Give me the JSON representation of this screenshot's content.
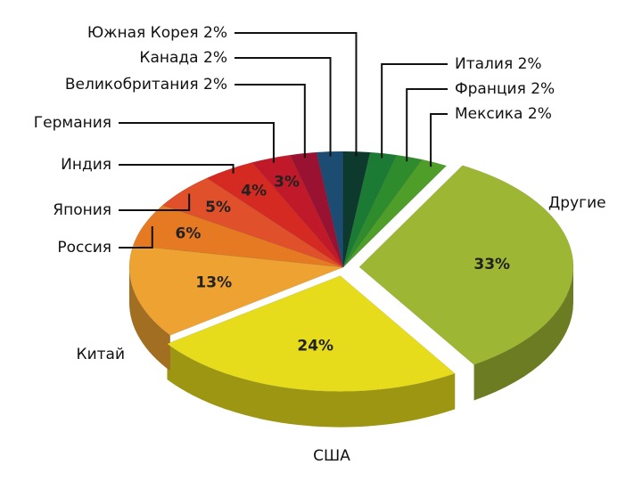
{
  "chart_data": {
    "type": "pie",
    "categories": [
      "Другие",
      "США",
      "Китай",
      "Россия",
      "Япония",
      "Индия",
      "Германия",
      "Великобритания",
      "Канада",
      "Южная Корея",
      "Италия",
      "Франция",
      "Мексика"
    ],
    "values": [
      33,
      24,
      13,
      6,
      5,
      4,
      3,
      2,
      2,
      2,
      2,
      2,
      2
    ],
    "value_labels": [
      "33%",
      "24%",
      "13%",
      "6%",
      "5%",
      "4%",
      "3%",
      "2%",
      "2%",
      "2%",
      "2%",
      "2%",
      "2%"
    ],
    "colors": [
      "#9db634",
      "#e6dc1c",
      "#eda232",
      "#e57a22",
      "#e0502a",
      "#d42a22",
      "#c01a2a",
      "#9a1232",
      "#1c4c72",
      "#0d3a2c",
      "#1b7a34",
      "#2f8c2c",
      "#4f9e2a"
    ]
  }
}
